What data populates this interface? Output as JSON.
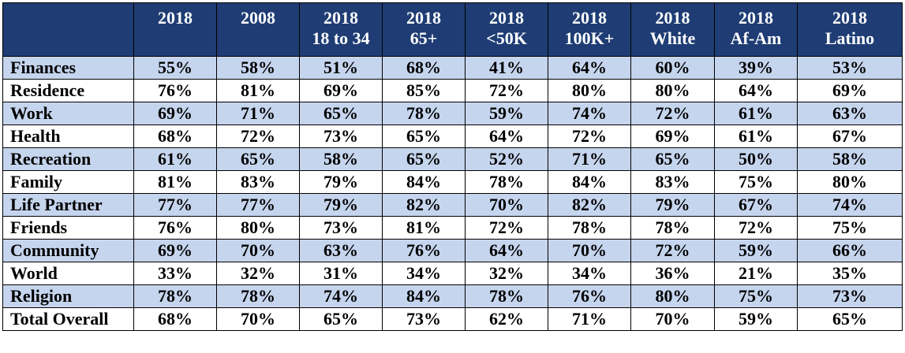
{
  "chart_data": {
    "type": "table",
    "columns": [
      {
        "line1": "2018",
        "line2": ""
      },
      {
        "line1": "2008",
        "line2": ""
      },
      {
        "line1": "2018",
        "line2": "18 to 34"
      },
      {
        "line1": "2018",
        "line2": "65+"
      },
      {
        "line1": "2018",
        "line2": "<50K"
      },
      {
        "line1": "2018",
        "line2": "100K+"
      },
      {
        "line1": "2018",
        "line2": "White"
      },
      {
        "line1": "2018",
        "line2": "Af-Am"
      },
      {
        "line1": "2018",
        "line2": "Latino"
      }
    ],
    "rows": [
      {
        "label": "Finances",
        "values": [
          "55%",
          "58%",
          "51%",
          "68%",
          "41%",
          "64%",
          "60%",
          "39%",
          "53%"
        ]
      },
      {
        "label": "Residence",
        "values": [
          "76%",
          "81%",
          "69%",
          "85%",
          "72%",
          "80%",
          "80%",
          "64%",
          "69%"
        ]
      },
      {
        "label": "Work",
        "values": [
          "69%",
          "71%",
          "65%",
          "78%",
          "59%",
          "74%",
          "72%",
          "61%",
          "63%"
        ]
      },
      {
        "label": "Health",
        "values": [
          "68%",
          "72%",
          "73%",
          "65%",
          "64%",
          "72%",
          "69%",
          "61%",
          "67%"
        ]
      },
      {
        "label": "Recreation",
        "values": [
          "61%",
          "65%",
          "58%",
          "65%",
          "52%",
          "71%",
          "65%",
          "50%",
          "58%"
        ]
      },
      {
        "label": "Family",
        "values": [
          "81%",
          "83%",
          "79%",
          "84%",
          "78%",
          "84%",
          "83%",
          "75%",
          "80%"
        ]
      },
      {
        "label": "Life Partner",
        "values": [
          "77%",
          "77%",
          "79%",
          "82%",
          "70%",
          "82%",
          "79%",
          "67%",
          "74%"
        ]
      },
      {
        "label": "Friends",
        "values": [
          "76%",
          "80%",
          "73%",
          "81%",
          "72%",
          "78%",
          "78%",
          "72%",
          "75%"
        ]
      },
      {
        "label": "Community",
        "values": [
          "69%",
          "70%",
          "63%",
          "76%",
          "64%",
          "70%",
          "72%",
          "59%",
          "66%"
        ]
      },
      {
        "label": "World",
        "values": [
          "33%",
          "32%",
          "31%",
          "34%",
          "32%",
          "34%",
          "36%",
          "21%",
          "35%"
        ]
      },
      {
        "label": "Religion",
        "values": [
          "78%",
          "78%",
          "74%",
          "84%",
          "78%",
          "76%",
          "80%",
          "75%",
          "73%"
        ]
      },
      {
        "label": "Total Overall",
        "values": [
          "68%",
          "70%",
          "65%",
          "73%",
          "62%",
          "71%",
          "70%",
          "59%",
          "65%"
        ]
      }
    ],
    "colors": {
      "header_bg": "#1f3d74",
      "header_text": "#ffffff",
      "row_shaded": "#c6d5ee",
      "row_plain": "#ffffff"
    }
  }
}
